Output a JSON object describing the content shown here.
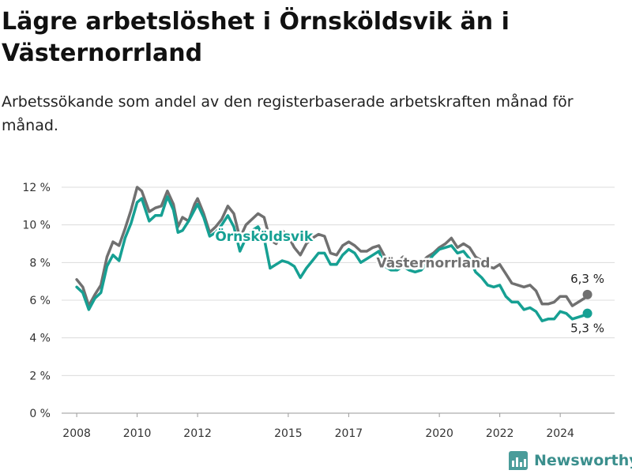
{
  "title": "Lägre arbetslöshet i Örnsköldsvik än i Västernorrland",
  "subtitle": "Arbetssökande som andel av den registerbaserade arbetskraften månad för månad.",
  "brand": "Newsworthy",
  "colors": {
    "ornskoldsvik": "#16a093",
    "vasternorrland": "#707070",
    "brand": "#3b8f8d"
  },
  "chart_data": {
    "type": "line",
    "ylim": [
      0,
      12
    ],
    "yticks": [
      {
        "value": 0,
        "label": "0 %"
      },
      {
        "value": 2,
        "label": "2 %"
      },
      {
        "value": 4,
        "label": "4 %"
      },
      {
        "value": 6,
        "label": "6 %"
      },
      {
        "value": 8,
        "label": "8 %"
      },
      {
        "value": 10,
        "label": "10 %"
      },
      {
        "value": 12,
        "label": "12 %"
      }
    ],
    "xlim": [
      2007.5,
      2025.8
    ],
    "xticks": [
      {
        "value": 2008,
        "label": "2008"
      },
      {
        "value": 2010,
        "label": "2010"
      },
      {
        "value": 2012,
        "label": "2012"
      },
      {
        "value": 2015,
        "label": "2015"
      },
      {
        "value": 2017,
        "label": "2017"
      },
      {
        "value": 2020,
        "label": "2020"
      },
      {
        "value": 2022,
        "label": "2022"
      },
      {
        "value": 2024,
        "label": "2024"
      }
    ],
    "series": [
      {
        "name": "Västernorrland",
        "color": "#707070",
        "end_label": "6,3 %",
        "points": [
          [
            2008.0,
            7.1
          ],
          [
            2008.2,
            6.7
          ],
          [
            2008.4,
            5.7
          ],
          [
            2008.6,
            6.3
          ],
          [
            2008.8,
            6.8
          ],
          [
            2009.0,
            8.3
          ],
          [
            2009.2,
            9.1
          ],
          [
            2009.4,
            8.9
          ],
          [
            2009.6,
            9.8
          ],
          [
            2009.8,
            10.8
          ],
          [
            2010.0,
            12.0
          ],
          [
            2010.15,
            11.8
          ],
          [
            2010.4,
            10.7
          ],
          [
            2010.6,
            10.9
          ],
          [
            2010.8,
            11.0
          ],
          [
            2011.0,
            11.8
          ],
          [
            2011.2,
            11.1
          ],
          [
            2011.35,
            9.9
          ],
          [
            2011.5,
            10.4
          ],
          [
            2011.7,
            10.2
          ],
          [
            2011.9,
            11.1
          ],
          [
            2012.0,
            11.4
          ],
          [
            2012.2,
            10.6
          ],
          [
            2012.4,
            9.6
          ],
          [
            2012.6,
            9.9
          ],
          [
            2012.8,
            10.3
          ],
          [
            2013.0,
            11.0
          ],
          [
            2013.2,
            10.6
          ],
          [
            2013.4,
            9.3
          ],
          [
            2013.6,
            10.0
          ],
          [
            2013.8,
            10.3
          ],
          [
            2014.0,
            10.6
          ],
          [
            2014.2,
            10.4
          ],
          [
            2014.4,
            9.2
          ],
          [
            2014.6,
            9.0
          ],
          [
            2014.8,
            9.7
          ],
          [
            2015.0,
            9.4
          ],
          [
            2015.2,
            8.8
          ],
          [
            2015.4,
            8.4
          ],
          [
            2015.6,
            9.0
          ],
          [
            2015.8,
            9.3
          ],
          [
            2016.0,
            9.5
          ],
          [
            2016.2,
            9.4
          ],
          [
            2016.4,
            8.5
          ],
          [
            2016.6,
            8.4
          ],
          [
            2016.8,
            8.9
          ],
          [
            2017.0,
            9.1
          ],
          [
            2017.2,
            8.9
          ],
          [
            2017.4,
            8.6
          ],
          [
            2017.6,
            8.6
          ],
          [
            2017.8,
            8.8
          ],
          [
            2018.0,
            8.9
          ],
          [
            2018.2,
            8.3
          ],
          [
            2018.4,
            8.1
          ],
          [
            2018.6,
            8.0
          ],
          [
            2018.8,
            8.3
          ],
          [
            2019.0,
            8.1
          ],
          [
            2019.2,
            8.1
          ],
          [
            2019.4,
            8.0
          ],
          [
            2019.6,
            8.3
          ],
          [
            2019.8,
            8.5
          ],
          [
            2020.0,
            8.8
          ],
          [
            2020.2,
            9.0
          ],
          [
            2020.4,
            9.3
          ],
          [
            2020.6,
            8.8
          ],
          [
            2020.8,
            9.0
          ],
          [
            2021.0,
            8.8
          ],
          [
            2021.2,
            8.3
          ],
          [
            2021.4,
            8.1
          ],
          [
            2021.6,
            7.8
          ],
          [
            2021.8,
            7.7
          ],
          [
            2022.0,
            7.9
          ],
          [
            2022.2,
            7.4
          ],
          [
            2022.4,
            6.9
          ],
          [
            2022.6,
            6.8
          ],
          [
            2022.8,
            6.7
          ],
          [
            2023.0,
            6.8
          ],
          [
            2023.2,
            6.5
          ],
          [
            2023.4,
            5.8
          ],
          [
            2023.6,
            5.8
          ],
          [
            2023.8,
            5.9
          ],
          [
            2024.0,
            6.2
          ],
          [
            2024.2,
            6.2
          ],
          [
            2024.4,
            5.7
          ],
          [
            2024.6,
            5.9
          ],
          [
            2024.8,
            6.1
          ],
          [
            2024.9,
            6.3
          ]
        ]
      },
      {
        "name": "Örnsköldsvik",
        "color": "#16a093",
        "end_label": "5,3 %",
        "points": [
          [
            2008.0,
            6.7
          ],
          [
            2008.2,
            6.4
          ],
          [
            2008.4,
            5.5
          ],
          [
            2008.6,
            6.1
          ],
          [
            2008.8,
            6.4
          ],
          [
            2009.0,
            7.8
          ],
          [
            2009.2,
            8.4
          ],
          [
            2009.4,
            8.1
          ],
          [
            2009.6,
            9.3
          ],
          [
            2009.8,
            10.1
          ],
          [
            2010.0,
            11.2
          ],
          [
            2010.15,
            11.4
          ],
          [
            2010.4,
            10.2
          ],
          [
            2010.6,
            10.5
          ],
          [
            2010.8,
            10.5
          ],
          [
            2011.0,
            11.5
          ],
          [
            2011.2,
            10.8
          ],
          [
            2011.35,
            9.6
          ],
          [
            2011.5,
            9.7
          ],
          [
            2011.7,
            10.2
          ],
          [
            2011.9,
            10.8
          ],
          [
            2012.0,
            11.1
          ],
          [
            2012.2,
            10.4
          ],
          [
            2012.4,
            9.4
          ],
          [
            2012.6,
            9.6
          ],
          [
            2012.8,
            10.0
          ],
          [
            2013.0,
            10.5
          ],
          [
            2013.2,
            9.9
          ],
          [
            2013.4,
            8.6
          ],
          [
            2013.6,
            9.3
          ],
          [
            2013.8,
            9.7
          ],
          [
            2014.0,
            9.9
          ],
          [
            2014.2,
            9.3
          ],
          [
            2014.4,
            7.7
          ],
          [
            2014.6,
            7.9
          ],
          [
            2014.8,
            8.1
          ],
          [
            2015.0,
            8.0
          ],
          [
            2015.2,
            7.8
          ],
          [
            2015.4,
            7.2
          ],
          [
            2015.6,
            7.7
          ],
          [
            2015.8,
            8.1
          ],
          [
            2016.0,
            8.5
          ],
          [
            2016.2,
            8.5
          ],
          [
            2016.4,
            7.9
          ],
          [
            2016.6,
            7.9
          ],
          [
            2016.8,
            8.4
          ],
          [
            2017.0,
            8.7
          ],
          [
            2017.2,
            8.5
          ],
          [
            2017.4,
            8.0
          ],
          [
            2017.6,
            8.2
          ],
          [
            2017.8,
            8.4
          ],
          [
            2018.0,
            8.6
          ],
          [
            2018.2,
            7.8
          ],
          [
            2018.4,
            7.6
          ],
          [
            2018.6,
            7.6
          ],
          [
            2018.8,
            7.8
          ],
          [
            2019.0,
            7.6
          ],
          [
            2019.2,
            7.5
          ],
          [
            2019.4,
            7.6
          ],
          [
            2019.6,
            8.0
          ],
          [
            2019.8,
            8.4
          ],
          [
            2020.0,
            8.7
          ],
          [
            2020.2,
            8.8
          ],
          [
            2020.4,
            8.9
          ],
          [
            2020.6,
            8.5
          ],
          [
            2020.8,
            8.6
          ],
          [
            2021.0,
            8.2
          ],
          [
            2021.2,
            7.5
          ],
          [
            2021.4,
            7.2
          ],
          [
            2021.6,
            6.8
          ],
          [
            2021.8,
            6.7
          ],
          [
            2022.0,
            6.8
          ],
          [
            2022.2,
            6.2
          ],
          [
            2022.4,
            5.9
          ],
          [
            2022.6,
            5.9
          ],
          [
            2022.8,
            5.5
          ],
          [
            2023.0,
            5.6
          ],
          [
            2023.2,
            5.4
          ],
          [
            2023.4,
            4.9
          ],
          [
            2023.6,
            5.0
          ],
          [
            2023.8,
            5.0
          ],
          [
            2024.0,
            5.4
          ],
          [
            2024.2,
            5.3
          ],
          [
            2024.4,
            5.0
          ],
          [
            2024.6,
            5.1
          ],
          [
            2024.8,
            5.2
          ],
          [
            2024.9,
            5.3
          ]
        ]
      }
    ]
  }
}
